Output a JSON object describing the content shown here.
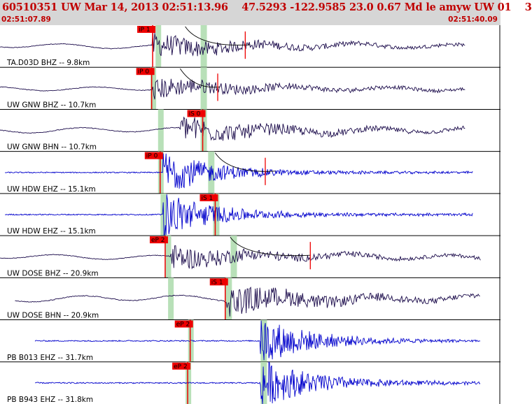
{
  "header": {
    "title": "60510351 UW Mar 14, 2013 02:51:13.96    47.5293 -122.9585 23.0 0.67 Md le amyw UW 01    3",
    "start_time": "02:51:07.89",
    "end_time": "02:51:40.09"
  },
  "colors": {
    "header_bg": "#d6d6d6",
    "header_text": "#c00000",
    "trace_dark": "#1a0a4a",
    "trace_blue": "#0000cc",
    "pick_box": "#ee0000",
    "window_fill": "#b8e0b8",
    "coda_curve": "#000000"
  },
  "chart_data": {
    "type": "line",
    "title": "60510351 UW Mar 14, 2013 02:51:13.96    47.5293 -122.9585 23.0 0.67 Md le amyw UW 01    3",
    "time_range": [
      "02:51:07.89",
      "02:51:40.09"
    ],
    "series": [
      {
        "label": "TA.D03D BHZ -- 9.8km",
        "color": "dark",
        "pick": "iP 1",
        "pick_t": 0.305,
        "window_t": 0.315,
        "s_window_t": 0.405,
        "start_t": 0.0,
        "end_t": 0.93,
        "amp": 0.55,
        "onset_t": 0.305,
        "type": "long",
        "coda": true,
        "coda_start": 0.37,
        "coda_end": 0.5,
        "marker_t": 0.49
      },
      {
        "label": "UW GNW BHZ -- 10.7km",
        "color": "dark",
        "pick": "iP 0",
        "pick_t": 0.303,
        "window_t": 0.305,
        "s_window_t": 0.405,
        "start_t": 0.0,
        "end_t": 0.93,
        "amp": 0.5,
        "onset_t": 0.305,
        "type": "long",
        "coda": true,
        "coda_start": 0.36,
        "coda_end": 0.44,
        "marker_t": 0.435
      },
      {
        "label": "UW GNW BHN -- 10.7km",
        "color": "dark",
        "pick": "iS 0",
        "pick_t": 0.405,
        "window_t": 0.32,
        "s_window_t": 0.405,
        "start_t": 0.0,
        "end_t": 0.93,
        "amp": 0.6,
        "onset_t": 0.36,
        "type": "long",
        "coda": false
      },
      {
        "label": "UW HDW EHZ -- 15.1km",
        "color": "blue",
        "pick": "iP 0",
        "pick_t": 0.32,
        "window_t": 0.32,
        "s_window_t": 0.42,
        "start_t": 0.01,
        "end_t": 0.945,
        "amp": 0.75,
        "onset_t": 0.325,
        "type": "short",
        "coda": true,
        "coda_start": 0.43,
        "coda_end": 0.55,
        "marker_t": 0.53
      },
      {
        "label": "UW HDW EHZ -- 15.1km",
        "color": "blue",
        "pick": "iS 1",
        "pick_t": 0.43,
        "window_t": 0.325,
        "s_window_t": 0.43,
        "start_t": 0.01,
        "end_t": 0.945,
        "amp": 0.8,
        "onset_t": 0.325,
        "type": "short",
        "coda": false
      },
      {
        "label": "UW DOSE BHZ -- 20.9km",
        "color": "dark",
        "pick": "eP 2",
        "pick_t": 0.33,
        "window_t": 0.335,
        "s_window_t": 0.465,
        "start_t": 0.0,
        "end_t": 0.96,
        "amp": 0.55,
        "onset_t": 0.34,
        "type": "long",
        "coda": true,
        "coda_start": 0.46,
        "coda_end": 0.62,
        "marker_t": 0.62
      },
      {
        "label": "UW DOSE BHN -- 20.9km",
        "color": "dark",
        "pick": "iS 1",
        "pick_t": 0.45,
        "window_t": 0.34,
        "s_window_t": 0.455,
        "start_t": 0.03,
        "end_t": 0.96,
        "amp": 0.7,
        "onset_t": 0.45,
        "type": "long",
        "coda": false
      },
      {
        "label": "PB B013 EHZ -- 31.7km",
        "color": "blue",
        "pick": "eP 2",
        "pick_t": 0.38,
        "window_t": 0.38,
        "s_window_t": 0.525,
        "start_t": 0.07,
        "end_t": 0.96,
        "amp": 0.8,
        "onset_t": 0.52,
        "type": "short",
        "coda": false
      },
      {
        "label": "PB B943 EHZ -- 31.8km",
        "color": "blue",
        "pick": "eP 2",
        "pick_t": 0.375,
        "window_t": 0.375,
        "s_window_t": 0.525,
        "start_t": 0.07,
        "end_t": 0.96,
        "amp": 0.85,
        "onset_t": 0.52,
        "type": "short",
        "coda": false
      }
    ]
  }
}
